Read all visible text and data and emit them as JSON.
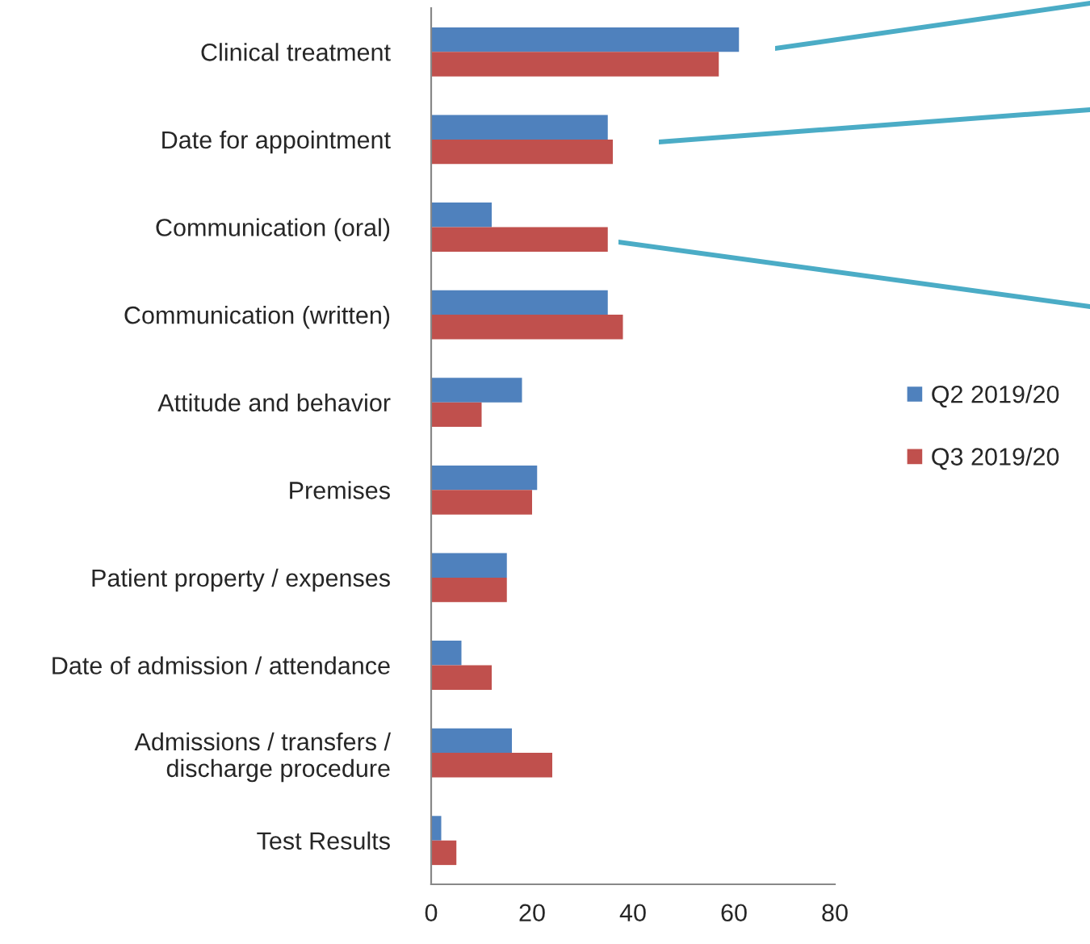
{
  "chart_data": {
    "type": "bar",
    "orientation": "horizontal",
    "categories": [
      "Clinical treatment",
      "Date for appointment",
      "Communication (oral)",
      "Communication (written)",
      "Attitude and behavior",
      "Premises",
      "Patient property / expenses",
      "Date of admission / attendance",
      "Admissions / transfers /\ndischarge procedure",
      "Test Results"
    ],
    "series": [
      {
        "name": "Q2 2019/20",
        "color": "#4f81bd",
        "values": [
          61,
          35,
          12,
          35,
          18,
          21,
          15,
          6,
          16,
          2
        ]
      },
      {
        "name": "Q3 2019/20",
        "color": "#c0504d",
        "values": [
          57,
          36,
          35,
          38,
          10,
          20,
          15,
          12,
          24,
          5
        ]
      }
    ],
    "xlim": [
      0,
      80
    ],
    "xticks": [
      0,
      20,
      40,
      60,
      80
    ],
    "grid": false,
    "legend": "right"
  }
}
